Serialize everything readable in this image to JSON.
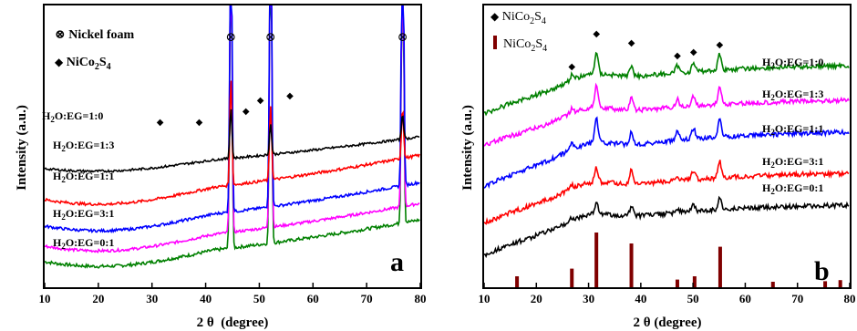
{
  "chart_data": [
    {
      "type": "line",
      "panel_label": "a",
      "xlabel": "2 θ  (degree)",
      "ylabel": "Intensity (a.u.)",
      "xlim": [
        10,
        80
      ],
      "xticks": [
        "10",
        "20",
        "30",
        "40",
        "50",
        "60",
        "70",
        "80"
      ],
      "legend": [
        {
          "marker": "⊗",
          "label": "Nickel foam"
        },
        {
          "marker": "◆",
          "label": "NiCo2S4"
        }
      ],
      "peak_markers_nickel_foam_x": [
        44.7,
        52.1,
        76.7
      ],
      "peak_markers_nico2s4_x": [
        31.5,
        38.8,
        47.5,
        50.2,
        55.7
      ],
      "series": [
        {
          "label": "H2O:EG=1:0",
          "color": "#008000",
          "start": 28,
          "rise_end": 74,
          "dip": 1.0,
          "noise": 3.5,
          "peak_heights": [
            400,
            400,
            400
          ]
        },
        {
          "label": "H2O:EG=1:3",
          "color": "#ff00ff",
          "start": 45,
          "rise_end": 92,
          "dip": 1.0,
          "noise": 3.0,
          "peak_heights": [
            400,
            400,
            400
          ]
        },
        {
          "label": "H2O:EG=1:1",
          "color": "#0000ff",
          "start": 67,
          "rise_end": 115,
          "dip": 1.0,
          "noise": 3.0,
          "peak_heights": [
            400,
            400,
            400
          ]
        },
        {
          "label": "H2O:EG=3:1",
          "color": "#ff0000",
          "start": 96,
          "rise_end": 145,
          "dip": 1.0,
          "noise": 3.0,
          "peak_heights": [
            118,
            82,
            55
          ]
        },
        {
          "label": "H2O:EG=0:1",
          "color": "#000000",
          "start": 130,
          "rise_end": 165,
          "dip": 0.6,
          "noise": 2.5,
          "peak_heights": [
            55,
            33,
            28
          ]
        }
      ]
    },
    {
      "type": "line",
      "panel_label": "b",
      "xlabel": "2 θ (degree)",
      "ylabel": "Intensity (a.u.)",
      "xlim": [
        10,
        80
      ],
      "xticks": [
        "10",
        "20",
        "30",
        "40",
        "50",
        "60",
        "70",
        "80"
      ],
      "legend": [
        {
          "marker": "◆",
          "label": "NiCo2S4"
        },
        {
          "marker": "bar",
          "label": "NiCo2S4"
        }
      ],
      "peak_markers_x": [
        26.8,
        31.5,
        38.2,
        47.0,
        50.1,
        55.1
      ],
      "reference_bars": [
        {
          "x": 16.3,
          "h": 20
        },
        {
          "x": 26.8,
          "h": 34
        },
        {
          "x": 31.5,
          "h": 100
        },
        {
          "x": 38.2,
          "h": 80
        },
        {
          "x": 47.0,
          "h": 14
        },
        {
          "x": 50.3,
          "h": 20
        },
        {
          "x": 55.2,
          "h": 74
        },
        {
          "x": 65.3,
          "h": 10
        },
        {
          "x": 75.3,
          "h": 11
        },
        {
          "x": 78.2,
          "h": 13
        }
      ],
      "series": [
        {
          "label": "H2O:EG=1:0",
          "color": "#008000",
          "start": 125,
          "rise_end": 72,
          "peak_heights": [
            6,
            24,
            12,
            8,
            10,
            18
          ]
        },
        {
          "label": "H2O:EG=1:3",
          "color": "#ff00ff",
          "start": 160,
          "rise_end": 110,
          "peak_heights": [
            6,
            26,
            13,
            9,
            11,
            20
          ]
        },
        {
          "label": "H2O:EG=1:1",
          "color": "#0000ff",
          "start": 205,
          "rise_end": 145,
          "peak_heights": [
            7,
            28,
            14,
            10,
            12,
            22
          ]
        },
        {
          "label": "H2O:EG=3:1",
          "color": "#ff0000",
          "start": 245,
          "rise_end": 190,
          "peak_heights": [
            4,
            16,
            16,
            6,
            10,
            18
          ]
        },
        {
          "label": "H2O:EG=0:1",
          "color": "#000000",
          "start": 280,
          "rise_end": 225,
          "peak_heights": [
            3,
            12,
            10,
            5,
            8,
            14
          ]
        }
      ]
    }
  ]
}
